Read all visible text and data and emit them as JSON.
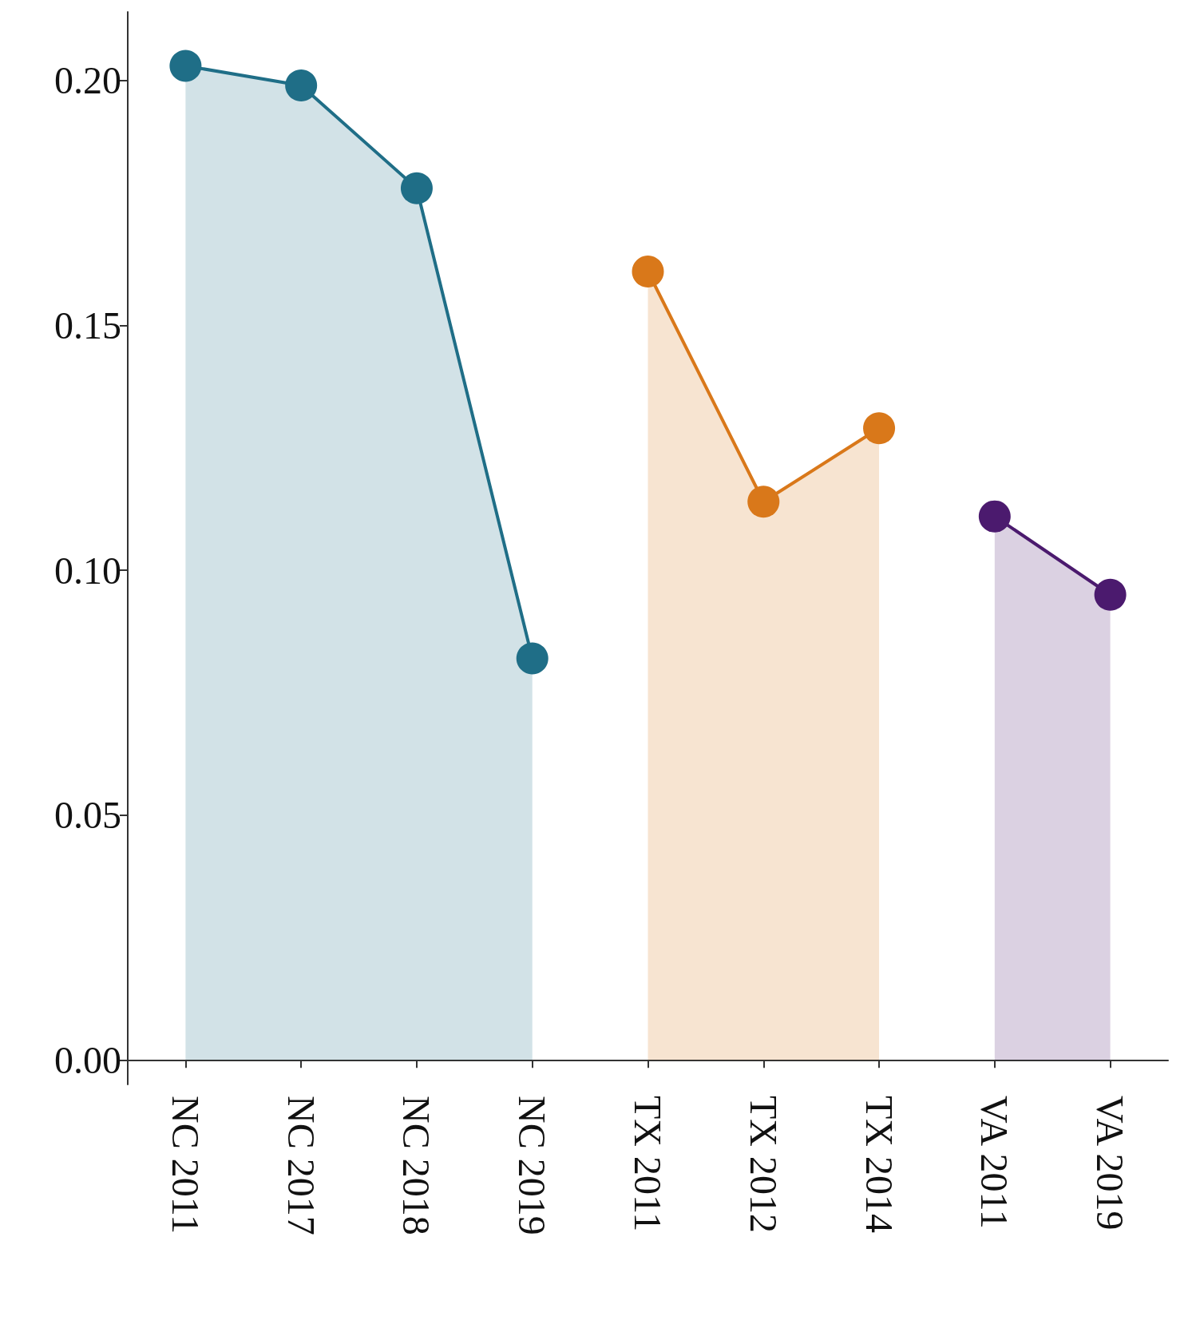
{
  "chart_data": {
    "type": "area",
    "categories": [
      "NC 2011",
      "NC 2017",
      "NC 2018",
      "NC 2019",
      "TX 2011",
      "TX 2012",
      "TX 2014",
      "VA 2011",
      "VA 2019"
    ],
    "series": [
      {
        "color": "#1f6e87",
        "values": [
          0.203,
          0.199,
          0.178,
          0.082,
          null,
          null,
          null,
          null,
          null
        ]
      },
      {
        "color": "#d9781a",
        "values": [
          null,
          null,
          null,
          null,
          0.161,
          0.114,
          0.129,
          null,
          null
        ]
      },
      {
        "color": "#4b1a6e",
        "values": [
          null,
          null,
          null,
          null,
          null,
          null,
          null,
          0.111,
          0.095
        ]
      }
    ],
    "ylim": [
      -0.005,
      0.214
    ],
    "yticks": [
      {
        "value": 0,
        "label": "0.00"
      },
      {
        "value": 0.05,
        "label": "0.05"
      },
      {
        "value": 0.1,
        "label": "0.10"
      },
      {
        "value": 0.15,
        "label": "0.15"
      },
      {
        "value": 0.2,
        "label": "0.20"
      }
    ],
    "grid": false,
    "marker": "circle",
    "line_style": "solid"
  }
}
